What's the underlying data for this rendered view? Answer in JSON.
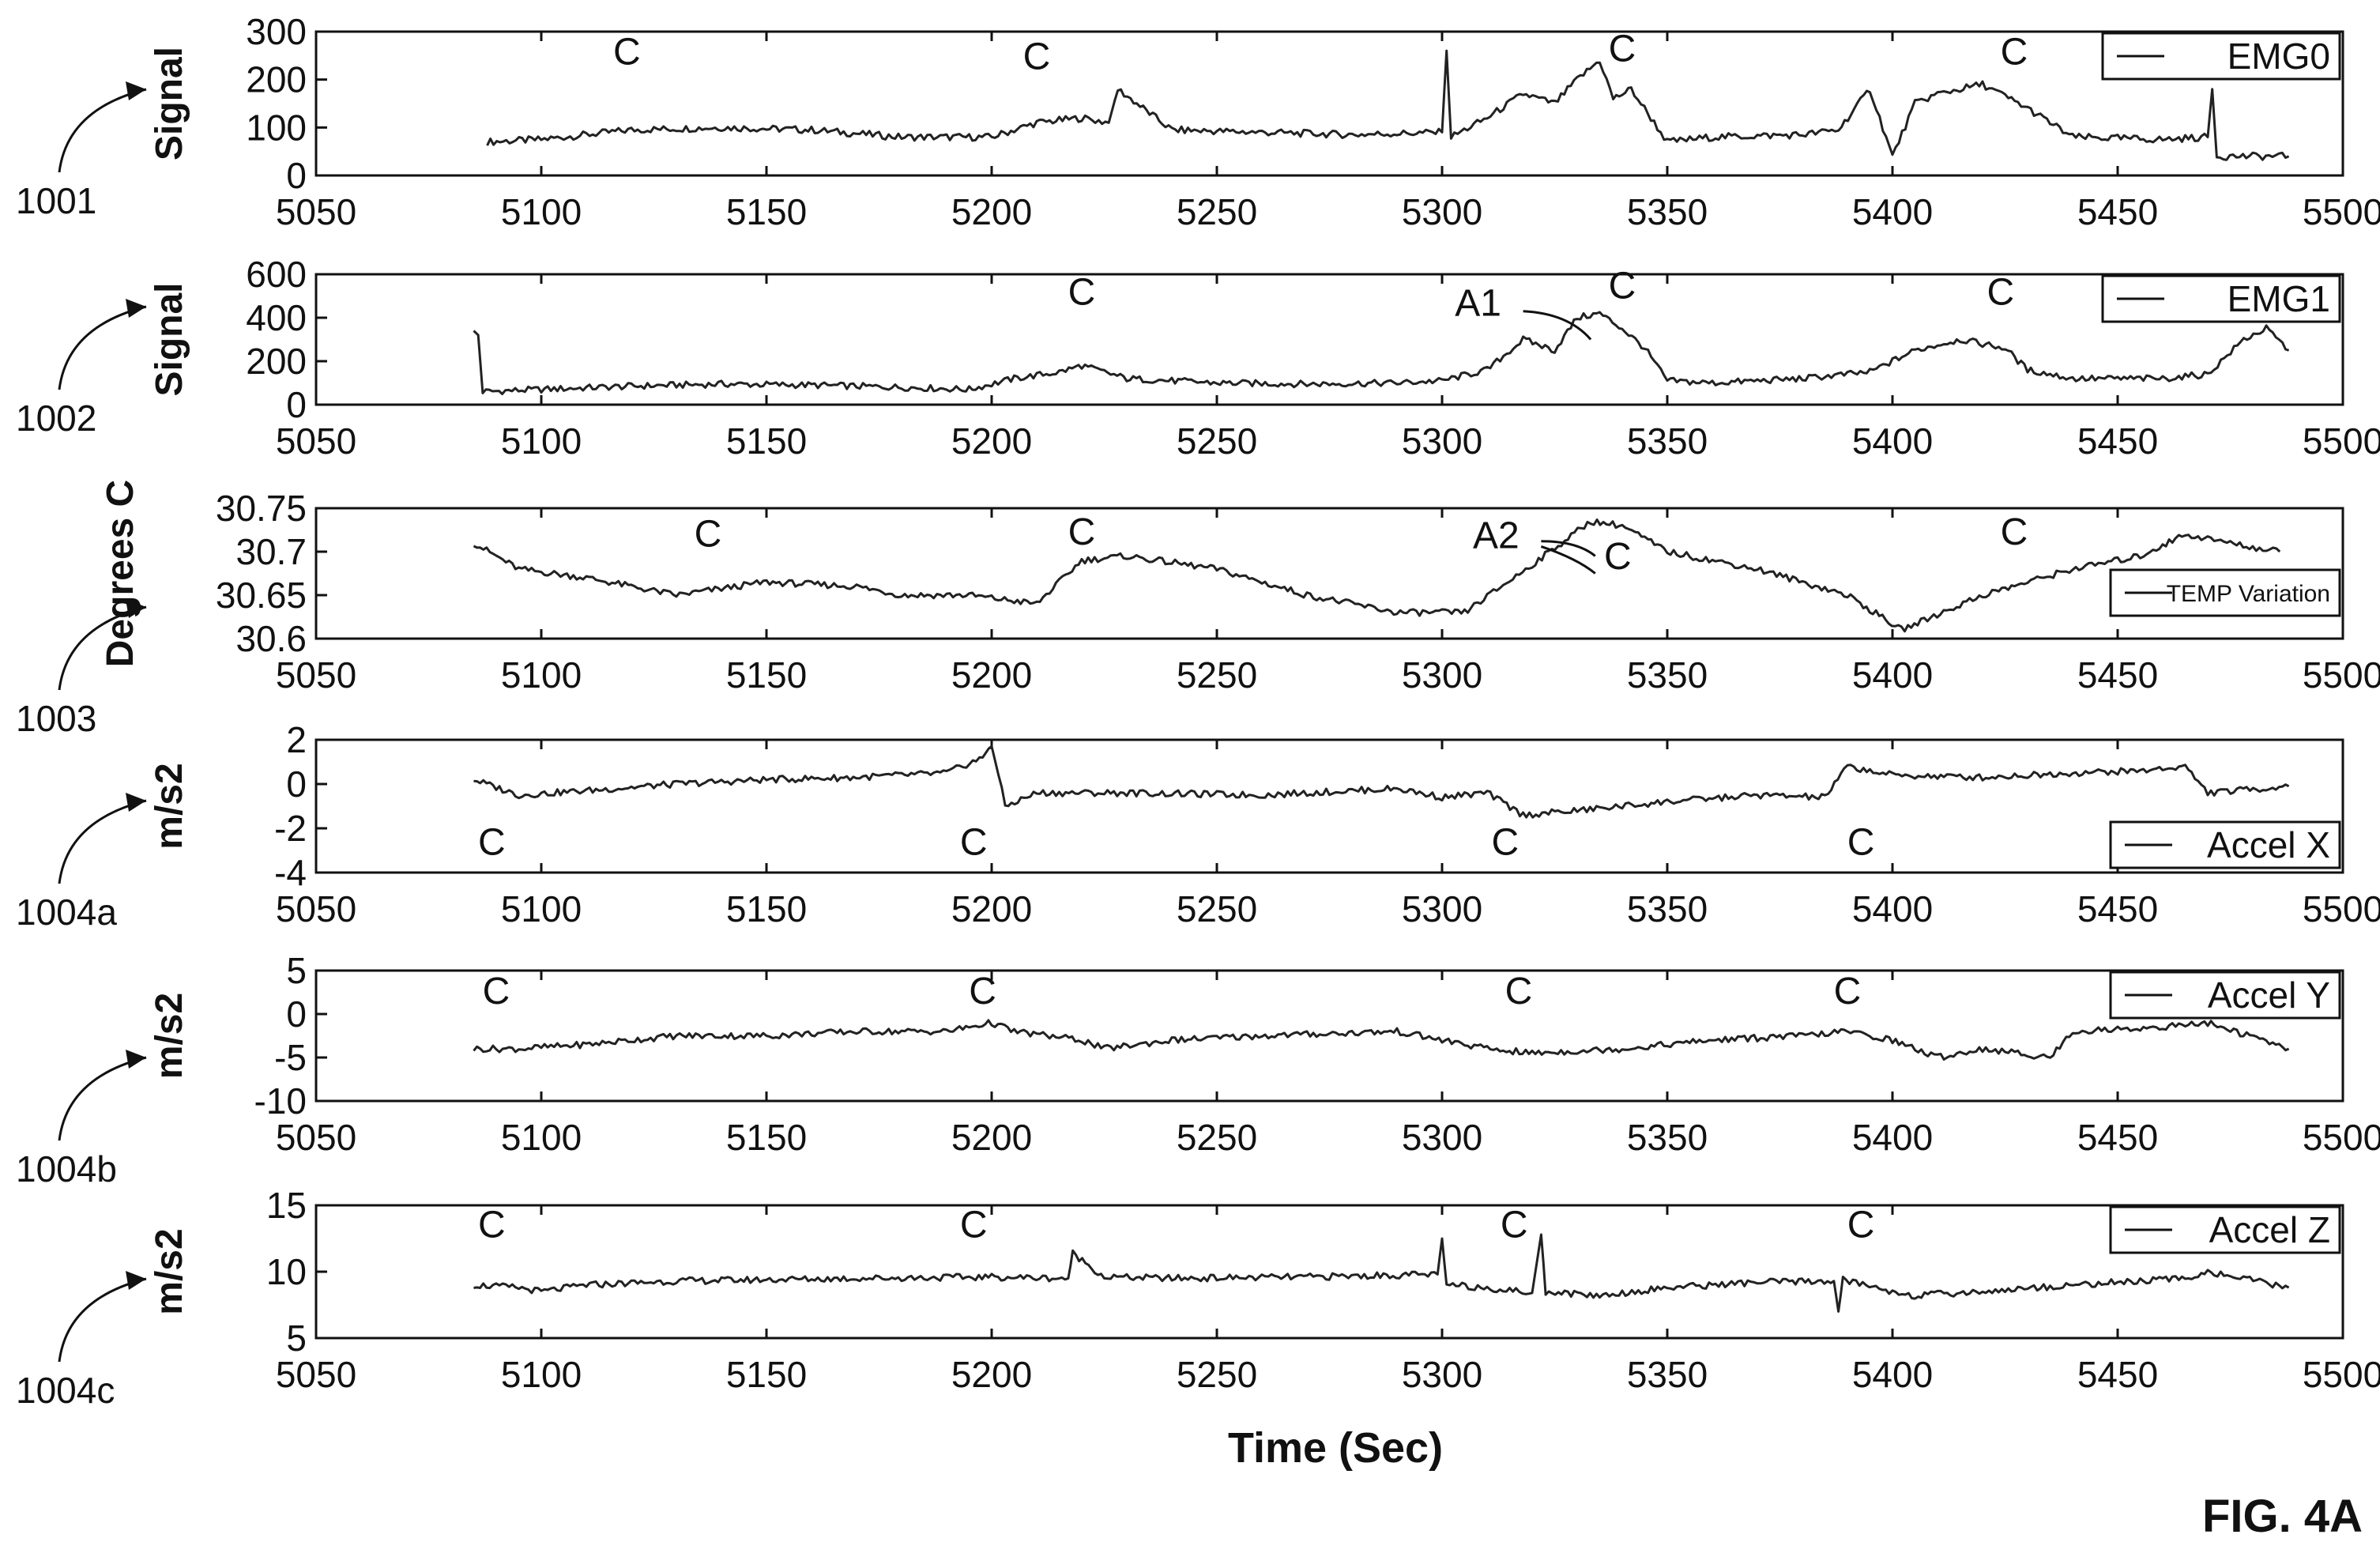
{
  "figure_label": "FIG. 4A",
  "chart_data": [
    {
      "type": "line",
      "ref": "1001",
      "ylabel": "Signal",
      "xlim": [
        5050,
        5500
      ],
      "ylim": [
        0,
        300
      ],
      "xticks": [
        5050,
        5100,
        5150,
        5200,
        5250,
        5300,
        5350,
        5400,
        5450,
        5500
      ],
      "yticks": [
        0,
        100,
        200,
        300
      ],
      "legend": "EMG0",
      "series": [
        {
          "name": "EMG0",
          "x": [
            5088,
            5100,
            5120,
            5140,
            5160,
            5180,
            5200,
            5210,
            5220,
            5226,
            5228,
            5240,
            5260,
            5280,
            5300,
            5301,
            5302,
            5310,
            5318,
            5325,
            5330,
            5335,
            5338,
            5342,
            5350,
            5360,
            5380,
            5388,
            5395,
            5400,
            5405,
            5410,
            5420,
            5430,
            5440,
            5460,
            5470,
            5471,
            5472,
            5488
          ],
          "y": [
            70,
            75,
            95,
            100,
            95,
            80,
            80,
            110,
            120,
            110,
            180,
            95,
            90,
            85,
            90,
            260,
            80,
            120,
            170,
            150,
            200,
            240,
            160,
            180,
            70,
            80,
            85,
            95,
            180,
            40,
            150,
            170,
            190,
            140,
            80,
            75,
            80,
            180,
            40,
            40
          ]
        }
      ],
      "annotations": [
        {
          "text": "C",
          "x": 5119,
          "y": 232
        },
        {
          "text": "C",
          "x": 5210,
          "y": 222
        },
        {
          "text": "C",
          "x": 5340,
          "y": 238
        },
        {
          "text": "C",
          "x": 5427,
          "y": 232
        }
      ]
    },
    {
      "type": "line",
      "ref": "1002",
      "ylabel": "Signal",
      "xlim": [
        5050,
        5500
      ],
      "ylim": [
        0,
        600
      ],
      "xticks": [
        5050,
        5100,
        5150,
        5200,
        5250,
        5300,
        5350,
        5400,
        5450,
        5500
      ],
      "yticks": [
        0,
        200,
        400,
        600
      ],
      "legend": "EMG1",
      "series": [
        {
          "name": "EMG1",
          "x": [
            5085,
            5086,
            5087,
            5100,
            5120,
            5140,
            5160,
            5180,
            5195,
            5205,
            5215,
            5220,
            5230,
            5250,
            5270,
            5290,
            5300,
            5310,
            5318,
            5325,
            5330,
            5335,
            5340,
            5345,
            5350,
            5360,
            5380,
            5395,
            5405,
            5415,
            5425,
            5430,
            5440,
            5460,
            5470,
            5478,
            5483,
            5488
          ],
          "y": [
            340,
            320,
            60,
            70,
            85,
            95,
            90,
            80,
            70,
            120,
            150,
            180,
            120,
            100,
            95,
            100,
            110,
            160,
            300,
            250,
            400,
            420,
            350,
            260,
            110,
            100,
            120,
            150,
            250,
            300,
            260,
            160,
            120,
            120,
            140,
            300,
            350,
            250
          ]
        }
      ],
      "annotations": [
        {
          "text": "C",
          "x": 5220,
          "y": 460
        },
        {
          "text": "C",
          "x": 5340,
          "y": 490
        },
        {
          "text": "C",
          "x": 5424,
          "y": 460
        },
        {
          "text": "A1",
          "x": 5308,
          "y": 410
        }
      ]
    },
    {
      "type": "line",
      "ref": "1003",
      "ylabel": "Degrees C",
      "xlim": [
        5050,
        5500
      ],
      "ylim": [
        30.6,
        30.75
      ],
      "xticks": [
        5050,
        5100,
        5150,
        5200,
        5250,
        5300,
        5350,
        5400,
        5450,
        5500
      ],
      "yticks": [
        30.6,
        30.65,
        30.7,
        30.75
      ],
      "legend": "TEMP Variation",
      "series": [
        {
          "name": "TEMP Variation",
          "x": [
            5085,
            5095,
            5110,
            5130,
            5150,
            5170,
            5180,
            5195,
            5210,
            5220,
            5230,
            5250,
            5270,
            5290,
            5305,
            5320,
            5333,
            5340,
            5350,
            5370,
            5390,
            5402,
            5420,
            5440,
            5455,
            5465,
            5480,
            5486
          ],
          "y": [
            30.71,
            30.68,
            30.67,
            30.65,
            30.665,
            30.66,
            30.65,
            30.65,
            30.64,
            30.69,
            30.695,
            30.68,
            30.65,
            30.63,
            30.63,
            30.685,
            30.735,
            30.73,
            30.7,
            30.68,
            30.65,
            30.61,
            30.65,
            30.68,
            30.695,
            30.72,
            30.705,
            30.7
          ]
        }
      ],
      "annotations": [
        {
          "text": "C",
          "x": 5137,
          "y": 30.706
        },
        {
          "text": "C",
          "x": 5220,
          "y": 30.708
        },
        {
          "text": "C",
          "x": 5339,
          "y": 30.68
        },
        {
          "text": "C",
          "x": 5427,
          "y": 30.708
        },
        {
          "text": "A2",
          "x": 5312,
          "y": 30.704
        }
      ]
    },
    {
      "type": "line",
      "ref": "1004a",
      "ylabel": "m/s2",
      "xlim": [
        5050,
        5500
      ],
      "ylim": [
        -4,
        2
      ],
      "xticks": [
        5050,
        5100,
        5150,
        5200,
        5250,
        5300,
        5350,
        5400,
        5450,
        5500
      ],
      "yticks": [
        -4,
        -2,
        0,
        2
      ],
      "legend": "Accel X",
      "series": [
        {
          "name": "Accel X",
          "x": [
            5085,
            5095,
            5110,
            5130,
            5150,
            5170,
            5190,
            5198,
            5200,
            5203,
            5210,
            5230,
            5260,
            5290,
            5300,
            5310,
            5318,
            5330,
            5350,
            5370,
            5385,
            5390,
            5400,
            5420,
            5440,
            5455,
            5465,
            5470,
            5488
          ],
          "y": [
            0.2,
            -0.5,
            -0.3,
            0.0,
            0.2,
            0.3,
            0.5,
            1.2,
            1.8,
            -1.0,
            -0.4,
            -0.4,
            -0.5,
            -0.2,
            -0.6,
            -0.4,
            -1.4,
            -1.2,
            -0.8,
            -0.5,
            -0.6,
            0.8,
            0.4,
            0.3,
            0.5,
            0.6,
            0.8,
            -0.4,
            -0.1
          ]
        }
      ],
      "annotations": [
        {
          "text": "C",
          "x": 5089,
          "y": -3.2
        },
        {
          "text": "C",
          "x": 5196,
          "y": -3.2
        },
        {
          "text": "C",
          "x": 5314,
          "y": -3.2
        },
        {
          "text": "C",
          "x": 5393,
          "y": -3.2
        }
      ]
    },
    {
      "type": "line",
      "ref": "1004b",
      "ylabel": "m/s2",
      "xlim": [
        5050,
        5500
      ],
      "ylim": [
        -10,
        5
      ],
      "xticks": [
        5050,
        5100,
        5150,
        5200,
        5250,
        5300,
        5350,
        5400,
        5450,
        5500
      ],
      "yticks": [
        -10,
        -5,
        0,
        5
      ],
      "legend": "Accel Y",
      "series": [
        {
          "name": "Accel Y",
          "x": [
            5085,
            5095,
            5110,
            5130,
            5150,
            5170,
            5190,
            5200,
            5205,
            5220,
            5225,
            5240,
            5260,
            5290,
            5300,
            5310,
            5320,
            5340,
            5360,
            5380,
            5390,
            5400,
            5410,
            5420,
            5435,
            5440,
            5460,
            5470,
            5488
          ],
          "y": [
            -4,
            -4,
            -3.5,
            -2.5,
            -2.5,
            -2,
            -2,
            -1,
            -2,
            -3,
            -4,
            -3,
            -2.5,
            -2,
            -3,
            -4,
            -4.5,
            -4,
            -3,
            -2.5,
            -2,
            -3,
            -5,
            -4,
            -5,
            -2,
            -1.5,
            -1,
            -4
          ]
        }
      ],
      "annotations": [
        {
          "text": "C",
          "x": 5090,
          "y": 1.2
        },
        {
          "text": "C",
          "x": 5198,
          "y": 1.2
        },
        {
          "text": "C",
          "x": 5317,
          "y": 1.2
        },
        {
          "text": "C",
          "x": 5390,
          "y": 1.2
        }
      ]
    },
    {
      "type": "line",
      "ref": "1004c",
      "ylabel": "m/s2",
      "xlim": [
        5050,
        5500
      ],
      "ylim": [
        5,
        15
      ],
      "xticks": [
        5050,
        5100,
        5150,
        5200,
        5250,
        5300,
        5350,
        5400,
        5450,
        5500
      ],
      "yticks": [
        5,
        10,
        15
      ],
      "legend": "Accel Z",
      "series": [
        {
          "name": "Accel Z",
          "x": [
            5085,
            5095,
            5100,
            5110,
            5130,
            5150,
            5170,
            5200,
            5217,
            5218,
            5225,
            5240,
            5270,
            5299,
            5300,
            5301,
            5310,
            5320,
            5322,
            5323,
            5335,
            5350,
            5370,
            5387,
            5388,
            5389,
            5400,
            5405,
            5420,
            5440,
            5465,
            5470,
            5488
          ],
          "y": [
            9,
            8.8,
            8.5,
            9,
            9.3,
            9.4,
            9.5,
            9.6,
            9.5,
            11.4,
            9.6,
            9.5,
            9.6,
            9.8,
            12.5,
            9,
            8.8,
            8.4,
            12.8,
            8.5,
            8.2,
            8.8,
            9.2,
            9.3,
            7,
            9.4,
            8.5,
            8.2,
            8.5,
            9,
            9.5,
            10,
            8.8
          ]
        }
      ],
      "annotations": [
        {
          "text": "C",
          "x": 5089,
          "y": 12.6
        },
        {
          "text": "C",
          "x": 5196,
          "y": 12.6
        },
        {
          "text": "C",
          "x": 5316,
          "y": 12.6
        },
        {
          "text": "C",
          "x": 5393,
          "y": 12.6
        }
      ]
    }
  ],
  "xlabel": "Time (Sec)"
}
